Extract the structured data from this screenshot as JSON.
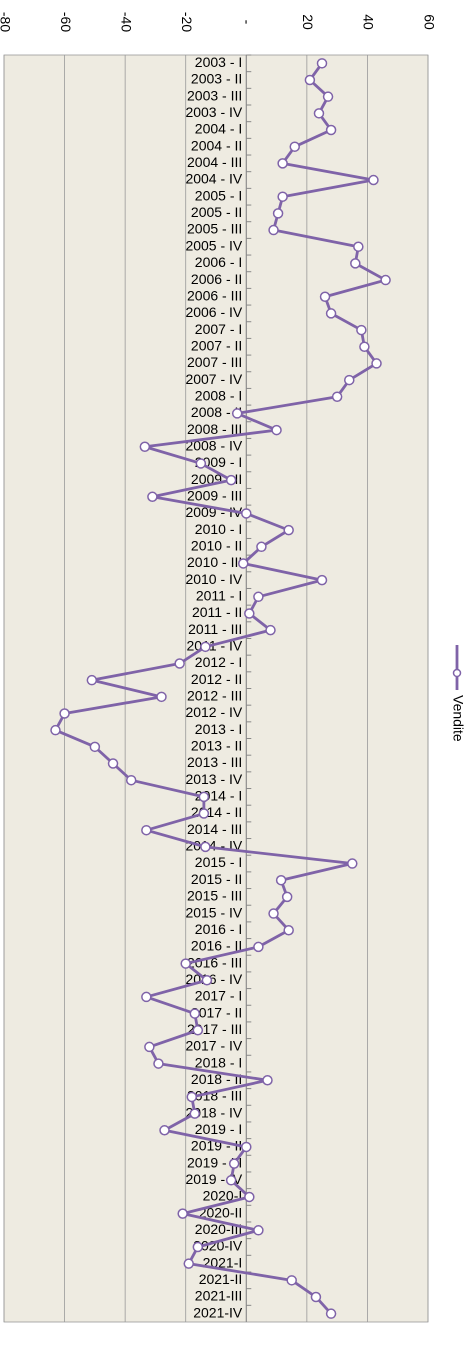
{
  "chart_data": {
    "type": "line",
    "categories": [
      "2003 - I",
      "2003 - II",
      "2003 - III",
      "2003 - IV",
      "2004 - I",
      "2004 - II",
      "2004 - III",
      "2004 - IV",
      "2005 - I",
      "2005 - II",
      "2005 - III",
      "2005 - IV",
      "2006 - I",
      "2006 - II",
      "2006 - III",
      "2006 - IV",
      "2007 - I",
      "2007 - II",
      "2007 - III",
      "2007 - IV",
      "2008 - I",
      "2008 - II",
      "2008 - III",
      "2008 - IV",
      "2009 - I",
      "2009 - II",
      "2009 - III",
      "2009 - IV",
      "2010 - I",
      "2010 - II",
      "2010 - III",
      "2010 - IV",
      "2011 - I",
      "2011 - II",
      "2011 - III",
      "2011 - IV",
      "2012 - I",
      "2012 - II",
      "2012 - III",
      "2012 - IV",
      "2013 - I",
      "2013 - II",
      "2013 - III",
      "2013 - IV",
      "2014 - I",
      "2014 - II",
      "2014 - III",
      "2014 - IV",
      "2015 - I",
      "2015 - II",
      "2015 - III",
      "2015 - IV",
      "2016 - I",
      "2016 - II",
      "2016 - III",
      "2016 - IV",
      "2017 - I",
      "2017 - II",
      "2017 - III",
      "2017 - IV",
      "2018 - I",
      "2018 - II",
      "2018 - III",
      "2018 - IV",
      "2019 - I",
      "2019 - II",
      "2019 - III",
      "2019 - IV",
      "2020-I",
      "2020-II",
      "2020-III",
      "2020-IV",
      "2021-I",
      "2021-II",
      "2021-III",
      "2021-IV"
    ],
    "series": [
      {
        "name": "Vendite",
        "color": "#7f63a8",
        "values": [
          25,
          21,
          27,
          24,
          28,
          16,
          12,
          42,
          12,
          10.5,
          9,
          37,
          36,
          46,
          26,
          28,
          38,
          39,
          43,
          34,
          30,
          -3,
          10,
          -33.5,
          -15,
          -5,
          -31,
          0,
          14,
          5,
          -1,
          25,
          4,
          1,
          8,
          -13.5,
          -22,
          -51,
          -28,
          -60,
          -63,
          -50,
          -44,
          -38,
          -14,
          -14,
          -33,
          -13.5,
          35,
          11.5,
          13.5,
          9,
          14,
          4,
          -20,
          -13,
          -33,
          -17,
          -16,
          -32,
          -29,
          7,
          -18,
          -17,
          -27,
          0,
          -4,
          -5,
          1,
          -21,
          4,
          -16,
          -19,
          15,
          23,
          28
        ]
      }
    ],
    "ylim": [
      -80,
      60
    ],
    "yticks": [
      -80,
      -60,
      -40,
      -20,
      {
        "value": 0,
        "label": "-"
      },
      20,
      40,
      60
    ],
    "grid": true,
    "legend": "right"
  }
}
